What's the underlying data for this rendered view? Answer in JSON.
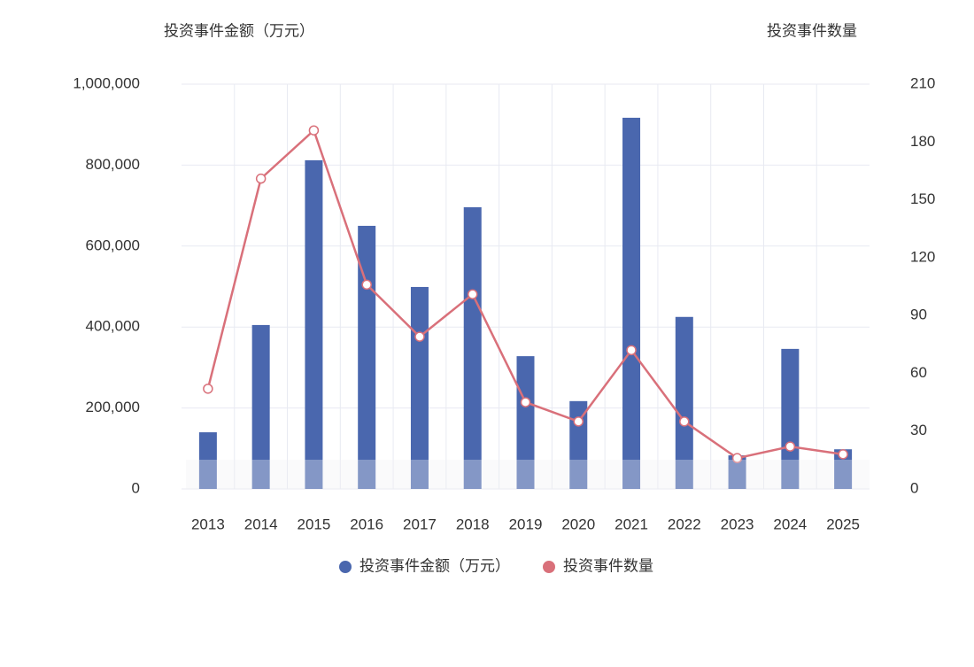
{
  "chart_data": {
    "type": "bar-line",
    "y_title": "投资事件金额（万元）",
    "y2_title": "投资事件数量",
    "categories": [
      "2013",
      "2014",
      "2015",
      "2016",
      "2017",
      "2018",
      "2019",
      "2020",
      "2021",
      "2022",
      "2023",
      "2024",
      "2025"
    ],
    "series": [
      {
        "name": "投资事件金额（万元）",
        "type": "bar",
        "color": "#4a67ae",
        "values": [
          140000,
          405000,
          812000,
          650000,
          499000,
          696000,
          328000,
          217000,
          917000,
          425000,
          83000,
          346000,
          98000
        ]
      },
      {
        "name": "投资事件数量",
        "type": "line",
        "axis": "y2",
        "color": "#d9707a",
        "values": [
          52,
          161,
          186,
          106,
          79,
          101,
          45,
          35,
          72,
          35,
          16,
          22,
          18
        ]
      }
    ],
    "ylim": [
      0,
      1000000
    ],
    "yticks": [
      0,
      {
        "value": 200000,
        "label": "200,000"
      },
      {
        "value": 400000,
        "label": "400,000"
      },
      {
        "value": 600000,
        "label": "600,000"
      },
      {
        "value": 800000,
        "label": "800,000"
      },
      {
        "value": 1000000,
        "label": "1,000,000"
      }
    ],
    "y2lim": [
      0,
      210
    ],
    "y2ticks": [
      0,
      30,
      60,
      90,
      120,
      150,
      180,
      210
    ],
    "grid": true
  }
}
